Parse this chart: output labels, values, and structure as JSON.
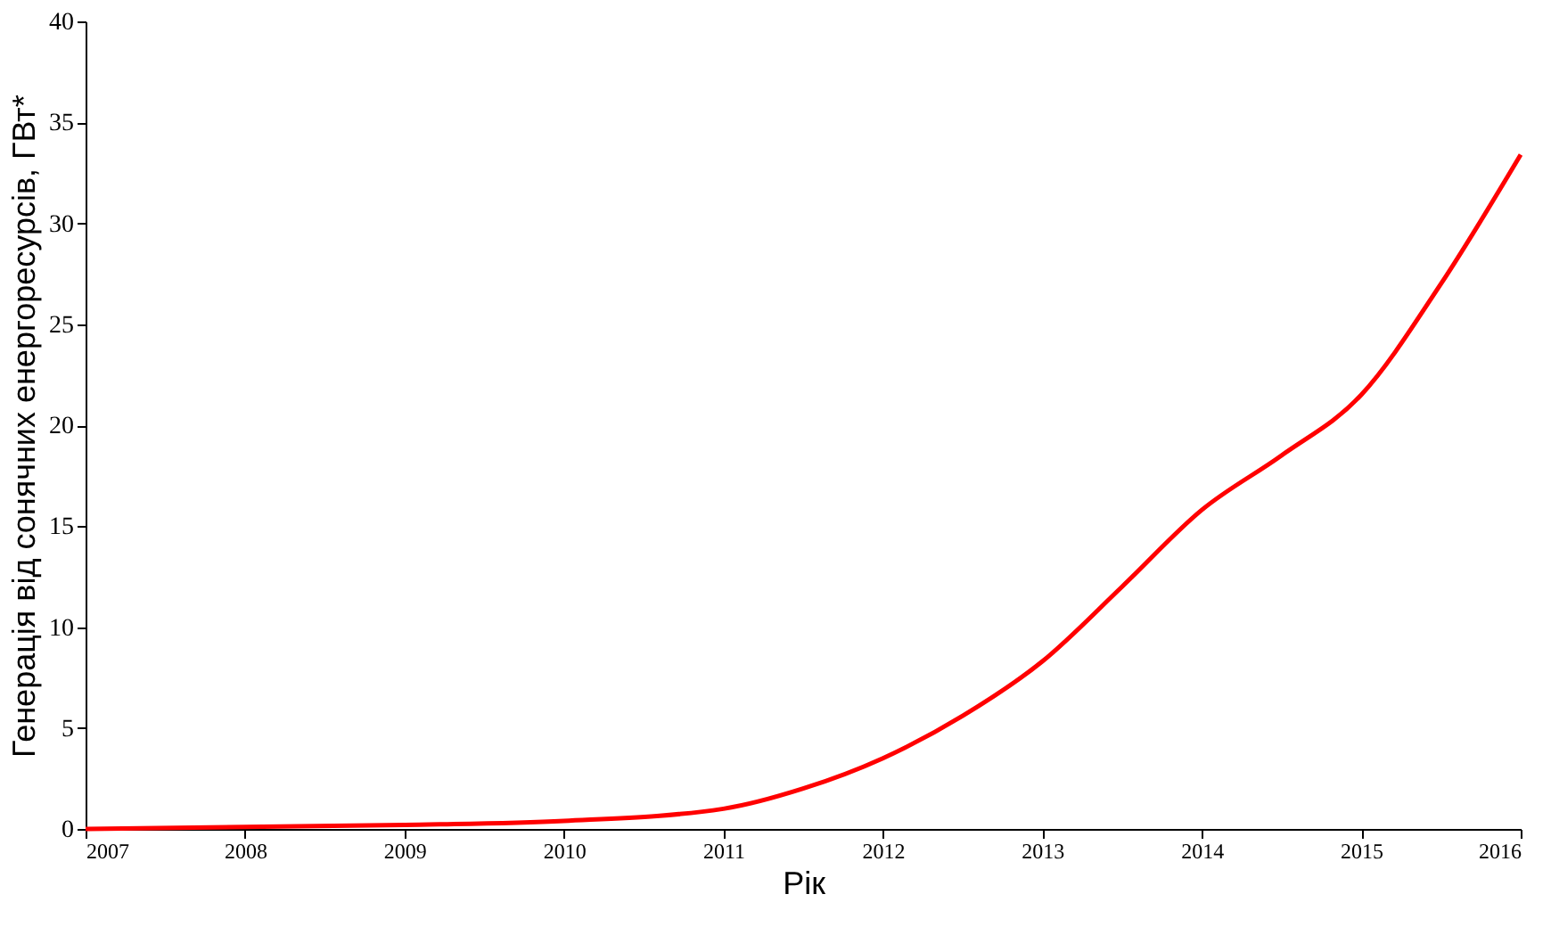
{
  "chart_data": {
    "type": "line",
    "xlabel": "Рік",
    "ylabel": "Генерація від сонячних енергоресурсів, ГВт*",
    "x": [
      2007,
      2008,
      2009,
      2010,
      2011,
      2011.5,
      2012,
      2012.5,
      2013,
      2013.5,
      2014,
      2014.5,
      2015,
      2015.5,
      2016
    ],
    "series": [
      {
        "color": "#ff0000",
        "values": [
          0,
          0.1,
          0.2,
          0.4,
          1.0,
          2.0,
          3.5,
          5.6,
          8.3,
          12,
          15.8,
          18.5,
          21.5,
          27,
          33.4
        ]
      }
    ],
    "xlim": [
      2007,
      2016
    ],
    "xticks": [
      2007,
      2008,
      2009,
      2010,
      2011,
      2012,
      2013,
      2014,
      2015,
      2016
    ],
    "ylim": [
      0,
      40
    ],
    "yticks": [
      0,
      5,
      10,
      15,
      20,
      25,
      30,
      35,
      40
    ],
    "grid": false,
    "marker": "none",
    "line_style": "solid"
  }
}
